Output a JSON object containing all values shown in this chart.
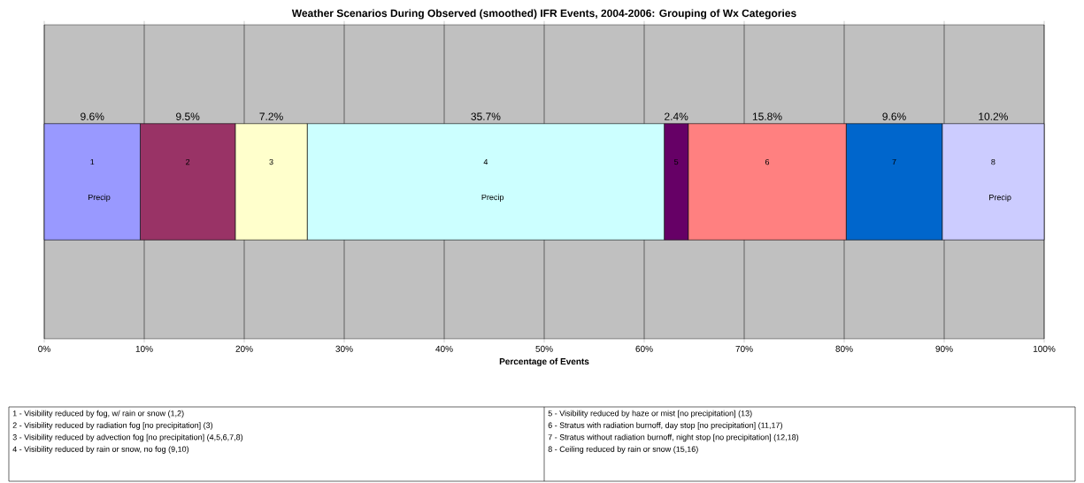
{
  "chart_data": {
    "type": "bar",
    "orientation": "horizontal",
    "stacked": true,
    "title": "Weather Scenarios During Observed (smoothed) IFR Events, 2004-2006:  Grouping of Wx Categories",
    "xlabel": "Percentage of Events",
    "categories": [
      null
    ],
    "series": [
      {
        "name": "1 Precip",
        "color": "#9999ff",
        "values": [
          9.6
        ],
        "value_labels": [
          "9.6%"
        ]
      },
      {
        "name": "2",
        "color": "#993366",
        "values": [
          9.5
        ],
        "value_labels": [
          "9.5%"
        ]
      },
      {
        "name": "3",
        "color": "#ffffcc",
        "values": [
          7.2
        ],
        "value_labels": [
          "7.2%"
        ]
      },
      {
        "name": "4 Precip",
        "color": "#ccffff",
        "values": [
          35.7
        ],
        "value_labels": [
          "35.7%"
        ]
      },
      {
        "name": "5",
        "color": "#660066",
        "values": [
          2.4
        ],
        "value_labels": [
          "2.4%"
        ]
      },
      {
        "name": "6",
        "color": "#ff8080",
        "values": [
          15.8
        ],
        "value_labels": [
          "15.8%"
        ]
      },
      {
        "name": "7",
        "color": "#0066cc",
        "values": [
          9.6
        ],
        "value_labels": [
          "9.6%"
        ]
      },
      {
        "name": "8 Precip",
        "color": "#ccccff",
        "values": [
          10.2
        ],
        "value_labels": [
          "10.2%"
        ]
      }
    ],
    "xlim": [
      0,
      100
    ],
    "xticks": [
      {
        "value": 0,
        "label": "0%"
      },
      {
        "value": 10,
        "label": "10%"
      },
      {
        "value": 20,
        "label": "20%"
      },
      {
        "value": 30,
        "label": "30%"
      },
      {
        "value": 40,
        "label": "40%"
      },
      {
        "value": 50,
        "label": "50%"
      },
      {
        "value": 60,
        "label": "60%"
      },
      {
        "value": 70,
        "label": "70%"
      },
      {
        "value": 80,
        "label": "80%"
      },
      {
        "value": 90,
        "label": "90%"
      },
      {
        "value": 100,
        "label": "100%"
      }
    ],
    "grid": "x",
    "annotations": [
      "1 - Visibility reduced by fog, w/ rain or snow  (1,2)",
      "2 - Visibility reduced by radiation fog [no precipitation]  (3)",
      "3 - Visibility reduced by advection fog [no precipitation]  (4,5,6,7,8)",
      "4 - Visibility reduced by rain or snow, no fog  (9,10)",
      "5 - Visibility reduced by haze or mist [no precipitation]  (13)",
      "6 - Stratus with radiation burnoff, day stop [no precipitation]  (11,17)",
      "7 - Stratus without radiation burnoff, night stop [no precipitation]  (12,18)",
      "8 - Ceiling reduced by rain or snow  (15,16)"
    ]
  }
}
